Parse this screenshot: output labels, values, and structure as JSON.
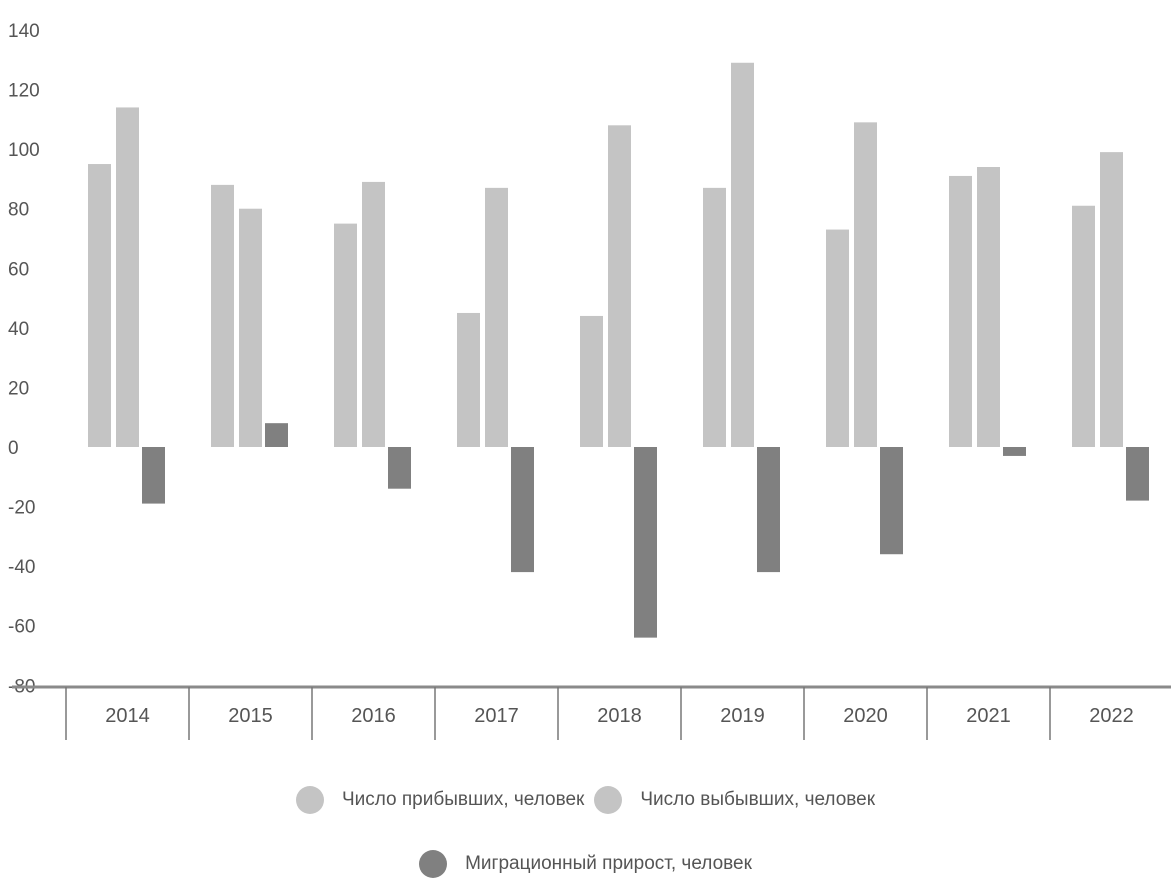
{
  "chart_data": {
    "type": "bar",
    "categories": [
      "2014",
      "2015",
      "2016",
      "2017",
      "2018",
      "2019",
      "2020",
      "2021",
      "2022"
    ],
    "series": [
      {
        "name": "Число прибывших, человек",
        "values": [
          95,
          88,
          75,
          45,
          44,
          87,
          73,
          91,
          81
        ],
        "color": "#c4c4c4"
      },
      {
        "name": "Число выбывших, человек",
        "values": [
          114,
          80,
          89,
          87,
          108,
          129,
          109,
          94,
          99
        ],
        "color": "#c4c4c4"
      },
      {
        "name": "Миграционный прирост, человек",
        "values": [
          -19,
          8,
          -14,
          -42,
          -64,
          -42,
          -36,
          -3,
          -18
        ],
        "color": "#808080"
      }
    ],
    "y_ticks": [
      "140",
      "120",
      "100",
      "80",
      "60",
      "40",
      "20",
      "0",
      "-20",
      "-40",
      "-60",
      "-80"
    ],
    "ylim": [
      -80,
      140
    ],
    "grid": false,
    "legend_position": "bottom"
  }
}
